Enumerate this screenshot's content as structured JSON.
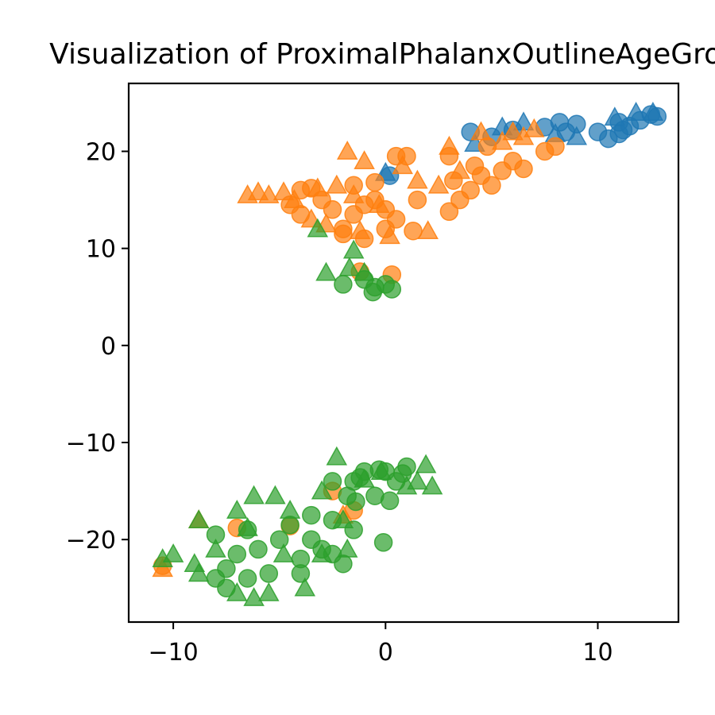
{
  "chart_data": {
    "type": "scatter",
    "title": "Visualization of ProximalPhalanxOutlineAgeGroup",
    "xlabel": "",
    "ylabel": "",
    "xlim": [
      -12.1,
      13.8
    ],
    "ylim": [
      -28.5,
      27.0
    ],
    "xticks": [
      -10,
      0,
      10
    ],
    "yticks": [
      -20,
      -10,
      0,
      10,
      20
    ],
    "xtick_labels": [
      "−10",
      "0",
      "10"
    ],
    "ytick_labels": [
      "−20",
      "−10",
      "0",
      "10",
      "20"
    ],
    "grid": false,
    "legend": false,
    "marker_alpha": 0.7,
    "series": [
      {
        "color": "#1f77b4",
        "circles": [
          [
            4.0,
            22.0
          ],
          [
            5.0,
            21.5
          ],
          [
            6.0,
            22.2
          ],
          [
            7.5,
            22.5
          ],
          [
            8.2,
            23.0
          ],
          [
            8.5,
            22.0
          ],
          [
            9.0,
            22.8
          ],
          [
            10.0,
            22.0
          ],
          [
            11.0,
            21.8
          ],
          [
            11.5,
            22.6
          ],
          [
            12.0,
            23.2
          ],
          [
            12.5,
            23.8
          ],
          [
            12.8,
            23.6
          ],
          [
            11.0,
            23.0
          ],
          [
            10.5,
            21.3
          ],
          [
            11.2,
            22.2
          ],
          [
            0.2,
            17.5
          ]
        ],
        "triangles": [
          [
            4.2,
            20.8
          ],
          [
            5.5,
            22.5
          ],
          [
            6.5,
            23.0
          ],
          [
            8.0,
            21.8
          ],
          [
            9.0,
            21.5
          ],
          [
            10.8,
            23.5
          ],
          [
            11.8,
            24.0
          ],
          [
            12.6,
            24.0
          ],
          [
            0.0,
            17.8
          ]
        ]
      },
      {
        "color": "#ff7f0e",
        "circles": [
          [
            0.5,
            19.5
          ],
          [
            1.0,
            19.5
          ],
          [
            -4.5,
            14.5
          ],
          [
            -4.0,
            13.5
          ],
          [
            -3.0,
            15.0
          ],
          [
            -2.5,
            14.0
          ],
          [
            -2.0,
            12.0
          ],
          [
            -1.5,
            13.5
          ],
          [
            -1.0,
            14.5
          ],
          [
            -0.5,
            15.0
          ],
          [
            0.0,
            14.0
          ],
          [
            0.5,
            13.0
          ],
          [
            -1.0,
            11.0
          ],
          [
            -2.0,
            11.5
          ],
          [
            0.0,
            12.0
          ],
          [
            -1.5,
            16.5
          ],
          [
            1.5,
            15.0
          ],
          [
            1.3,
            11.8
          ],
          [
            3.0,
            13.8
          ],
          [
            3.5,
            15.0
          ],
          [
            4.0,
            16.0
          ],
          [
            4.5,
            17.5
          ],
          [
            5.0,
            16.5
          ],
          [
            5.5,
            18.0
          ],
          [
            6.0,
            19.0
          ],
          [
            6.5,
            18.2
          ],
          [
            4.2,
            18.5
          ],
          [
            4.8,
            20.5
          ],
          [
            7.5,
            20.0
          ],
          [
            8.0,
            20.5
          ],
          [
            3.2,
            17.0
          ],
          [
            3.0,
            19.5
          ],
          [
            -1.2,
            7.6
          ],
          [
            0.3,
            7.3
          ],
          [
            -0.5,
            16.8
          ],
          [
            -3.5,
            16.2
          ],
          [
            -4.0,
            16.0
          ],
          [
            -7.0,
            -18.8
          ],
          [
            -4.5,
            -18.6
          ],
          [
            -10.5,
            -22.7
          ],
          [
            -1.5,
            -17.0
          ],
          [
            -2.5,
            -15.0
          ]
        ],
        "triangles": [
          [
            -5.5,
            15.5
          ],
          [
            -4.8,
            15.8
          ],
          [
            -4.3,
            15.0
          ],
          [
            -3.2,
            16.2
          ],
          [
            -2.3,
            16.5
          ],
          [
            -1.5,
            15.5
          ],
          [
            -0.3,
            14.5
          ],
          [
            -2.8,
            12.5
          ],
          [
            -1.2,
            11.8
          ],
          [
            -1.8,
            20.0
          ],
          [
            -1.0,
            19.0
          ],
          [
            0.8,
            18.5
          ],
          [
            1.5,
            17.0
          ],
          [
            2.5,
            16.5
          ],
          [
            3.5,
            18.0
          ],
          [
            3.0,
            20.5
          ],
          [
            4.5,
            22.0
          ],
          [
            5.5,
            21.0
          ],
          [
            6.0,
            22.0
          ],
          [
            6.5,
            21.5
          ],
          [
            7.0,
            22.3
          ],
          [
            -6.0,
            15.8
          ],
          [
            -6.5,
            15.5
          ],
          [
            -3.5,
            13.0
          ],
          [
            0.2,
            11.3
          ],
          [
            2.0,
            11.8
          ],
          [
            -10.5,
            -23.0
          ],
          [
            -2.0,
            -17.5
          ],
          [
            -8.8,
            -18.0
          ]
        ]
      },
      {
        "color": "#2ca02c",
        "circles": [
          [
            -2.0,
            6.3
          ],
          [
            -1.0,
            6.8
          ],
          [
            -0.5,
            6.0
          ],
          [
            0.0,
            6.3
          ],
          [
            0.3,
            5.8
          ],
          [
            -0.6,
            5.5
          ],
          [
            -2.5,
            -14.0
          ],
          [
            -1.5,
            -14.0
          ],
          [
            -1.0,
            -13.0
          ],
          [
            0.0,
            -13.0
          ],
          [
            0.5,
            -14.0
          ],
          [
            1.0,
            -12.5
          ],
          [
            -1.8,
            -15.5
          ],
          [
            -0.5,
            -15.5
          ],
          [
            0.2,
            -16.0
          ],
          [
            -2.5,
            -18.0
          ],
          [
            -3.5,
            -17.5
          ],
          [
            -4.5,
            -18.5
          ],
          [
            -5.0,
            -20.0
          ],
          [
            -6.0,
            -21.0
          ],
          [
            -7.0,
            -21.5
          ],
          [
            -7.5,
            -23.0
          ],
          [
            -8.0,
            -24.0
          ],
          [
            -6.5,
            -24.0
          ],
          [
            -5.5,
            -23.5
          ],
          [
            -4.0,
            -22.0
          ],
          [
            -3.0,
            -21.0
          ],
          [
            -2.0,
            -22.5
          ],
          [
            -1.5,
            -19.0
          ],
          [
            -3.5,
            -20.0
          ],
          [
            -6.5,
            -19.0
          ],
          [
            -8.0,
            -19.5
          ],
          [
            -7.5,
            -25.0
          ],
          [
            -4.0,
            -23.5
          ],
          [
            -2.5,
            -21.5
          ],
          [
            -0.1,
            -20.3
          ],
          [
            -1.2,
            -13.6
          ],
          [
            -0.3,
            -12.8
          ],
          [
            0.8,
            -13.2
          ],
          [
            -1.4,
            -16.1
          ]
        ],
        "triangles": [
          [
            -3.2,
            12.0
          ],
          [
            -1.5,
            9.8
          ],
          [
            -1.7,
            8.0
          ],
          [
            -2.8,
            7.5
          ],
          [
            -1.0,
            7.5
          ],
          [
            -2.3,
            -11.5
          ],
          [
            -1.0,
            -13.8
          ],
          [
            1.0,
            -14.5
          ],
          [
            1.9,
            -12.3
          ],
          [
            2.2,
            -14.5
          ],
          [
            -3.0,
            -15.0
          ],
          [
            -4.5,
            -17.0
          ],
          [
            -5.2,
            -15.5
          ],
          [
            -6.2,
            -15.5
          ],
          [
            -7.0,
            -17.0
          ],
          [
            -6.5,
            -18.8
          ],
          [
            -8.0,
            -21.0
          ],
          [
            -9.0,
            -22.5
          ],
          [
            -10.0,
            -21.5
          ],
          [
            -10.5,
            -22.0
          ],
          [
            -8.8,
            -23.5
          ],
          [
            -7.0,
            -25.5
          ],
          [
            -6.2,
            -26.0
          ],
          [
            -5.5,
            -25.5
          ],
          [
            -3.8,
            -25.0
          ],
          [
            -3.0,
            -21.5
          ],
          [
            -2.0,
            -18.0
          ],
          [
            -1.8,
            -21.0
          ],
          [
            -4.8,
            -21.5
          ],
          [
            -8.8,
            -18.0
          ],
          [
            1.5,
            -14.0
          ],
          [
            -0.2,
            -13.0
          ]
        ]
      }
    ]
  }
}
